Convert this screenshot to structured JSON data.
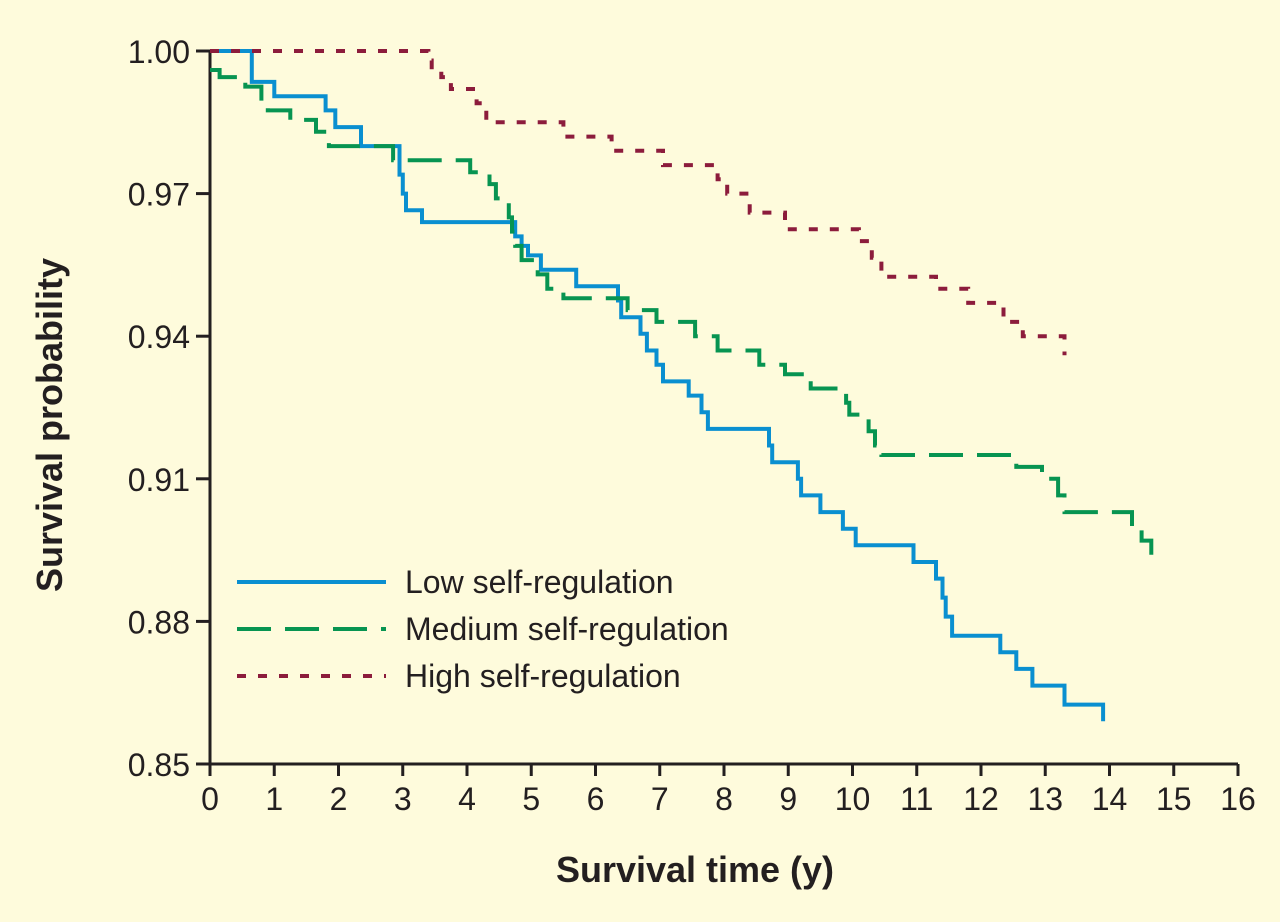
{
  "chart_data": {
    "type": "line",
    "title": "",
    "xlabel": "Survival time (y)",
    "ylabel": "Survival probability",
    "xlim": [
      0,
      16
    ],
    "ylim": [
      0.85,
      1.0
    ],
    "x_ticks": [
      0,
      1,
      2,
      3,
      4,
      5,
      6,
      7,
      8,
      9,
      10,
      11,
      12,
      13,
      14,
      15,
      16
    ],
    "y_ticks": [
      0.85,
      0.88,
      0.91,
      0.94,
      0.97,
      1.0
    ],
    "y_tick_labels": [
      "0.85",
      "0.88",
      "0.91",
      "0.94",
      "0.97",
      "1.00"
    ],
    "grid": false,
    "legend_position": "bottom-left",
    "step": true,
    "series": [
      {
        "name": "Low self-regulation",
        "color": "#0a8fd0",
        "dash": "solid",
        "points": [
          [
            0,
            1.0
          ],
          [
            0.65,
            0.9935
          ],
          [
            1.0,
            0.9905
          ],
          [
            1.8,
            0.9875
          ],
          [
            1.95,
            0.984
          ],
          [
            2.35,
            0.98
          ],
          [
            2.95,
            0.974
          ],
          [
            3.0,
            0.97
          ],
          [
            3.05,
            0.9665
          ],
          [
            3.3,
            0.964
          ],
          [
            4.75,
            0.961
          ],
          [
            4.85,
            0.959
          ],
          [
            4.95,
            0.957
          ],
          [
            5.15,
            0.954
          ],
          [
            5.7,
            0.9505
          ],
          [
            6.35,
            0.9475
          ],
          [
            6.4,
            0.944
          ],
          [
            6.7,
            0.9405
          ],
          [
            6.8,
            0.937
          ],
          [
            6.95,
            0.934
          ],
          [
            7.05,
            0.9305
          ],
          [
            7.45,
            0.9275
          ],
          [
            7.65,
            0.924
          ],
          [
            7.75,
            0.9205
          ],
          [
            8.7,
            0.917
          ],
          [
            8.75,
            0.9135
          ],
          [
            9.15,
            0.91
          ],
          [
            9.2,
            0.9065
          ],
          [
            9.5,
            0.903
          ],
          [
            9.85,
            0.8995
          ],
          [
            10.05,
            0.896
          ],
          [
            10.95,
            0.8925
          ],
          [
            11.3,
            0.889
          ],
          [
            11.4,
            0.885
          ],
          [
            11.45,
            0.881
          ],
          [
            11.55,
            0.877
          ],
          [
            12.3,
            0.8735
          ],
          [
            12.55,
            0.87
          ],
          [
            12.8,
            0.8665
          ],
          [
            13.3,
            0.8625
          ],
          [
            13.9,
            0.859
          ]
        ]
      },
      {
        "name": "Medium self-regulation",
        "color": "#079451",
        "dash": "long",
        "points": [
          [
            0,
            0.996
          ],
          [
            0.15,
            0.9945
          ],
          [
            0.55,
            0.9925
          ],
          [
            0.8,
            0.9895
          ],
          [
            0.9,
            0.9875
          ],
          [
            1.25,
            0.9855
          ],
          [
            1.65,
            0.983
          ],
          [
            1.85,
            0.98
          ],
          [
            2.85,
            0.977
          ],
          [
            4.05,
            0.9745
          ],
          [
            4.35,
            0.972
          ],
          [
            4.45,
            0.969
          ],
          [
            4.65,
            0.965
          ],
          [
            4.7,
            0.962
          ],
          [
            4.75,
            0.959
          ],
          [
            4.85,
            0.956
          ],
          [
            5.1,
            0.953
          ],
          [
            5.25,
            0.95
          ],
          [
            5.5,
            0.948
          ],
          [
            6.5,
            0.9455
          ],
          [
            6.95,
            0.943
          ],
          [
            7.55,
            0.94
          ],
          [
            7.9,
            0.937
          ],
          [
            8.55,
            0.934
          ],
          [
            8.95,
            0.932
          ],
          [
            9.35,
            0.929
          ],
          [
            9.9,
            0.926
          ],
          [
            9.95,
            0.9235
          ],
          [
            10.25,
            0.92
          ],
          [
            10.35,
            0.917
          ],
          [
            10.45,
            0.915
          ],
          [
            12.55,
            0.9125
          ],
          [
            12.95,
            0.91
          ],
          [
            13.2,
            0.9065
          ],
          [
            13.3,
            0.903
          ],
          [
            14.35,
            0.9
          ],
          [
            14.5,
            0.897
          ],
          [
            14.65,
            0.894
          ]
        ]
      },
      {
        "name": "High self-regulation",
        "color": "#8c1c3c",
        "dash": "short",
        "points": [
          [
            0,
            1.0
          ],
          [
            3.4,
            0.998
          ],
          [
            3.45,
            0.996
          ],
          [
            3.6,
            0.9945
          ],
          [
            3.75,
            0.992
          ],
          [
            4.15,
            0.989
          ],
          [
            4.3,
            0.985
          ],
          [
            5.5,
            0.982
          ],
          [
            6.25,
            0.979
          ],
          [
            7.05,
            0.976
          ],
          [
            7.9,
            0.973
          ],
          [
            8.05,
            0.97
          ],
          [
            8.4,
            0.966
          ],
          [
            8.95,
            0.9625
          ],
          [
            10.1,
            0.96
          ],
          [
            10.3,
            0.9565
          ],
          [
            10.45,
            0.9525
          ],
          [
            11.3,
            0.95
          ],
          [
            11.8,
            0.947
          ],
          [
            12.35,
            0.943
          ],
          [
            12.65,
            0.94
          ],
          [
            13.3,
            0.936
          ]
        ]
      }
    ]
  }
}
